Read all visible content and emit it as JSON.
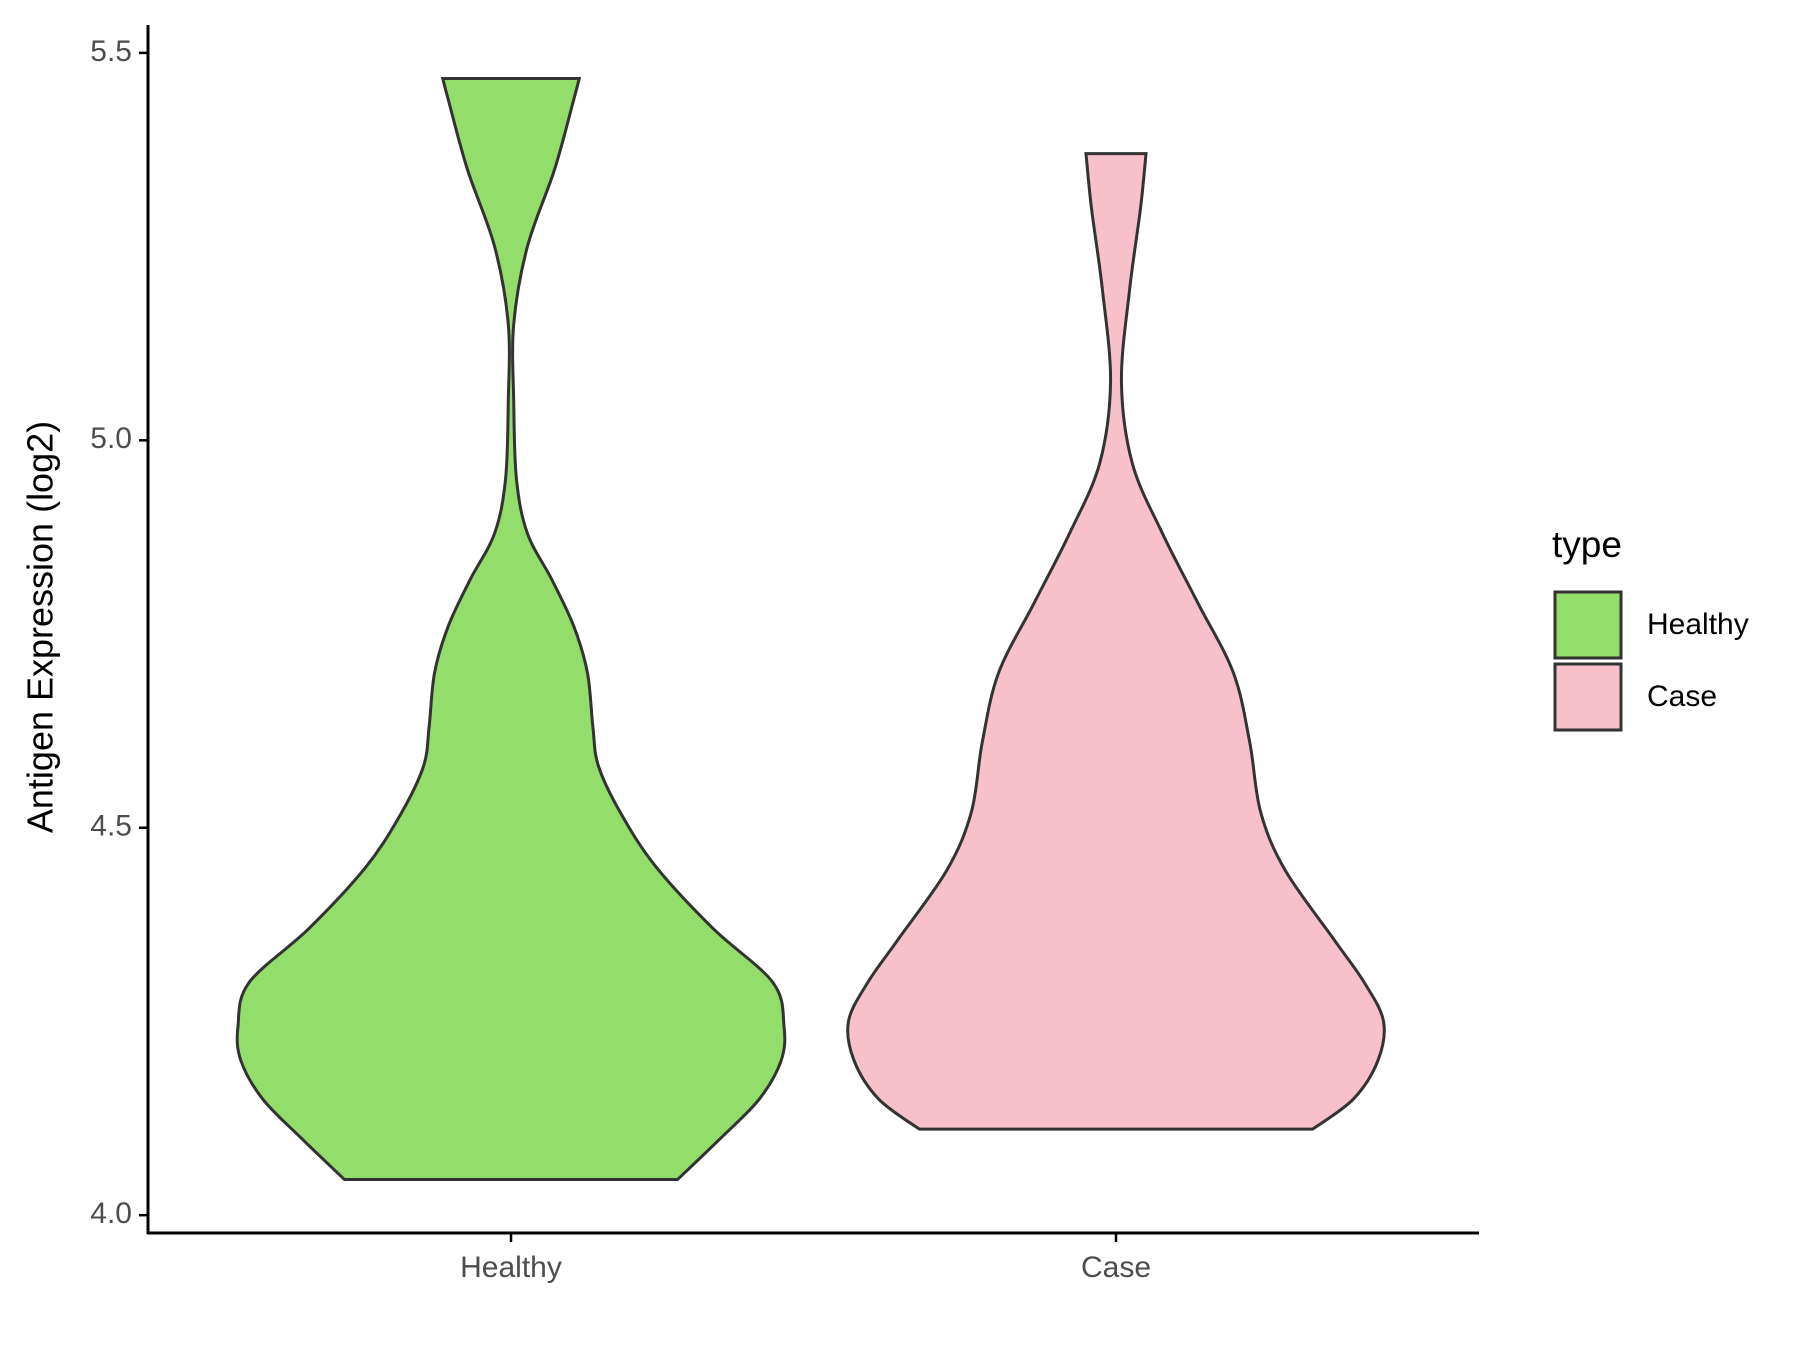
{
  "chart_data": {
    "type": "violin",
    "ylabel": "Antigen Expression (log2)",
    "categories": [
      "Healthy",
      "Case"
    ],
    "legend_title": "type",
    "legend": "right",
    "ylim": [
      3.977,
      5.536
    ],
    "yticks": [
      {
        "value": 4.0,
        "label": "4.0"
      },
      4.5,
      {
        "value": 5.0,
        "label": "5.0"
      },
      5.5
    ],
    "series": [
      {
        "name": "Healthy",
        "color": "#93dd6a",
        "y": [
          4.046,
          4.1,
          4.15,
          4.2,
          4.244,
          4.3,
          4.37,
          4.45,
          4.52,
          4.58,
          4.63,
          4.7,
          4.76,
          4.82,
          4.88,
          4.95,
          5.05,
          5.15,
          5.25,
          5.35,
          5.44,
          5.467
        ],
        "density": [
          0.61,
          0.77,
          0.91,
          0.99,
          1.0,
          0.96,
          0.74,
          0.53,
          0.4,
          0.32,
          0.3,
          0.28,
          0.23,
          0.15,
          0.06,
          0.02,
          0.01,
          0.01,
          0.06,
          0.16,
          0.23,
          0.25
        ]
      },
      {
        "name": "Case",
        "color": "#f7c0cb",
        "y": [
          4.111,
          4.15,
          4.2,
          4.25,
          4.3,
          4.355,
          4.445,
          4.52,
          4.61,
          4.7,
          4.79,
          4.88,
          4.97,
          5.075,
          5.195,
          5.3,
          5.37
        ],
        "density": [
          0.72,
          0.87,
          0.96,
          0.98,
          0.91,
          0.8,
          0.62,
          0.53,
          0.49,
          0.43,
          0.3,
          0.17,
          0.06,
          0.02,
          0.05,
          0.09,
          0.11
        ]
      }
    ]
  }
}
